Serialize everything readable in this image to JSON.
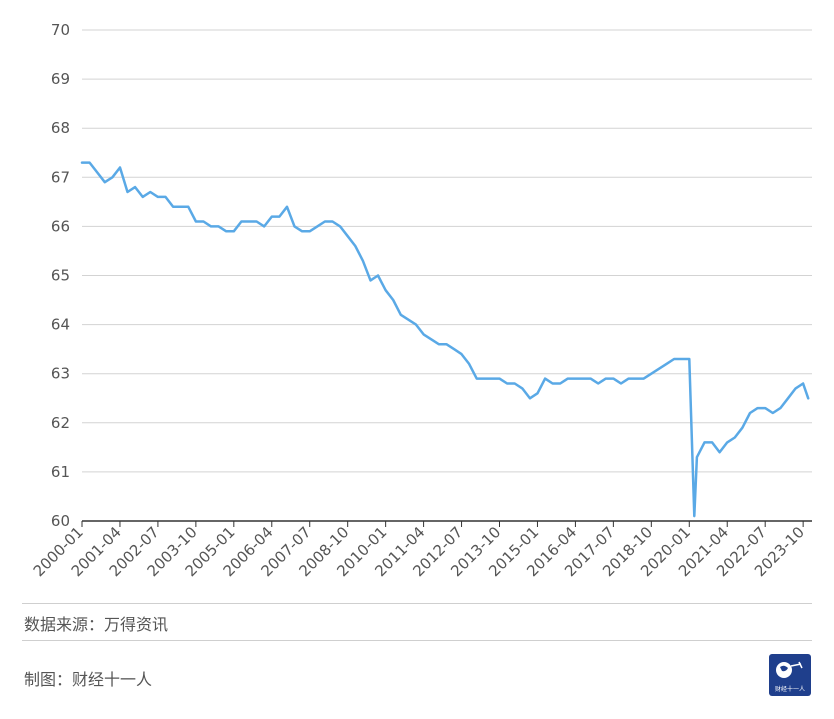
{
  "chart_data": {
    "type": "line",
    "title": "",
    "xlabel": "",
    "ylabel": "",
    "ylim": [
      60,
      70
    ],
    "yticks": [
      "60",
      "61",
      "62",
      "63",
      "64",
      "65",
      "66",
      "67",
      "68",
      "69",
      "70"
    ],
    "grid": true,
    "legend": "none",
    "line_color": "#5aa9e6",
    "xticks": [
      "2000-01",
      "2001-04",
      "2002-07",
      "2003-10",
      "2005-01",
      "2006-04",
      "2007-07",
      "2008-10",
      "2010-01",
      "2011-04",
      "2012-07",
      "2013-10",
      "2015-01",
      "2016-04",
      "2017-07",
      "2018-10",
      "2020-01",
      "2021-04",
      "2022-07",
      "2023-10"
    ],
    "series": [
      {
        "x": [
          "2000-01",
          "2000-04",
          "2000-07",
          "2000-10",
          "2001-01",
          "2001-04",
          "2001-07",
          "2001-10",
          "2002-01",
          "2002-04",
          "2002-07",
          "2002-10",
          "2003-01",
          "2003-04",
          "2003-07",
          "2003-10",
          "2004-01",
          "2004-04",
          "2004-07",
          "2004-10",
          "2005-01",
          "2005-04",
          "2005-07",
          "2005-10",
          "2006-01",
          "2006-04",
          "2006-07",
          "2006-10",
          "2007-01",
          "2007-04",
          "2007-07",
          "2007-10",
          "2008-01",
          "2008-04",
          "2008-07",
          "2008-10",
          "2009-01",
          "2009-04",
          "2009-07",
          "2009-10",
          "2010-01",
          "2010-04",
          "2010-07",
          "2010-10",
          "2011-01",
          "2011-04",
          "2011-07",
          "2011-10",
          "2012-01",
          "2012-04",
          "2012-07",
          "2012-10",
          "2013-01",
          "2013-04",
          "2013-07",
          "2013-10",
          "2014-01",
          "2014-04",
          "2014-07",
          "2014-10",
          "2015-01",
          "2015-04",
          "2015-07",
          "2015-10",
          "2016-01",
          "2016-04",
          "2016-07",
          "2016-10",
          "2017-01",
          "2017-04",
          "2017-07",
          "2017-10",
          "2018-01",
          "2018-04",
          "2018-07",
          "2018-10",
          "2019-01",
          "2019-04",
          "2019-07",
          "2019-10",
          "2020-01",
          "2020-03",
          "2020-04",
          "2020-07",
          "2020-10",
          "2021-01",
          "2021-04",
          "2021-07",
          "2021-10",
          "2022-01",
          "2022-04",
          "2022-07",
          "2022-10",
          "2023-01",
          "2023-04",
          "2023-07",
          "2023-10",
          "2023-12"
        ],
        "values": [
          67.3,
          67.3,
          67.1,
          66.9,
          67.0,
          67.2,
          66.7,
          66.8,
          66.6,
          66.7,
          66.6,
          66.6,
          66.4,
          66.4,
          66.4,
          66.1,
          66.1,
          66.0,
          66.0,
          65.9,
          65.9,
          66.1,
          66.1,
          66.1,
          66.0,
          66.2,
          66.2,
          66.4,
          66.0,
          65.9,
          65.9,
          66.0,
          66.1,
          66.1,
          66.0,
          65.8,
          65.6,
          65.3,
          64.9,
          65.0,
          64.7,
          64.5,
          64.2,
          64.1,
          64.0,
          63.8,
          63.7,
          63.6,
          63.6,
          63.5,
          63.4,
          63.2,
          62.9,
          62.9,
          62.9,
          62.9,
          62.8,
          62.8,
          62.7,
          62.5,
          62.6,
          62.9,
          62.8,
          62.8,
          62.9,
          62.9,
          62.9,
          62.9,
          62.8,
          62.9,
          62.9,
          62.8,
          62.9,
          62.9,
          62.9,
          63.0,
          63.1,
          63.2,
          63.3,
          63.3,
          63.3,
          60.1,
          61.3,
          61.6,
          61.6,
          61.4,
          61.6,
          61.7,
          61.9,
          62.2,
          62.3,
          62.3,
          62.2,
          62.3,
          62.5,
          62.7,
          62.8,
          62.5
        ]
      }
    ]
  },
  "footer": {
    "source": "数据来源：万得资讯",
    "credit": "制图：财经十一人",
    "logo_text": "财经十一人"
  }
}
